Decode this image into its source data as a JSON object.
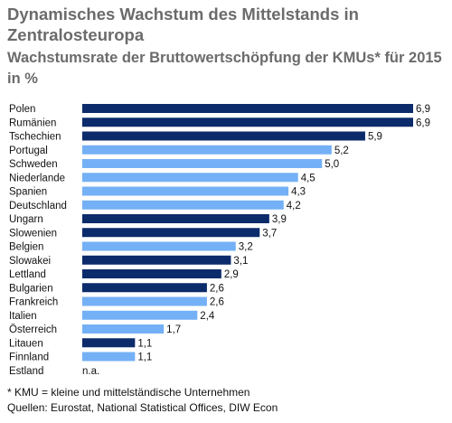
{
  "header": {
    "title": "Dynamisches Wachstum des Mittelstands in Zentralosteuropa",
    "subtitle": "Wachstumsrate der Bruttowertschöpfung der KMUs* für 2015",
    "unit": "in %"
  },
  "footer": {
    "note": "* KMU = kleine und mittelständische Unternehmen",
    "source": "Quellen: Eurostat, National Statistical Offices, DIW Econ"
  },
  "colors": {
    "dark": "#0c2b6b",
    "light": "#74b0f5",
    "text": "#111111",
    "title": "#6b6b6b"
  },
  "chart_data": {
    "type": "bar",
    "orientation": "horizontal",
    "title": "Dynamisches Wachstum des Mittelstands in Zentralosteuropa",
    "subtitle": "Wachstumsrate der Bruttowertschöpfung der KMUs* für 2015",
    "unit": "in %",
    "xlim": [
      0,
      6.9
    ],
    "grid": false,
    "categories": [
      "Polen",
      "Rumänien",
      "Tschechien",
      "Portugal",
      "Schweden",
      "Niederlande",
      "Spanien",
      "Deutschland",
      "Ungarn",
      "Slowenien",
      "Belgien",
      "Slowakei",
      "Lettland",
      "Bulgarien",
      "Frankreich",
      "Italien",
      "Österreich",
      "Litauen",
      "Finnland",
      "Estland"
    ],
    "values": [
      6.9,
      6.9,
      5.9,
      5.2,
      5.0,
      4.5,
      4.3,
      4.2,
      3.9,
      3.7,
      3.2,
      3.1,
      2.9,
      2.6,
      2.6,
      2.4,
      1.7,
      1.1,
      1.1,
      null
    ],
    "value_labels": [
      "6,9",
      "6,9",
      "5,9",
      "5,2",
      "5,0",
      "4,5",
      "4,3",
      "4,2",
      "3,9",
      "3,7",
      "3,2",
      "3,1",
      "2,9",
      "2,6",
      "2,6",
      "2,4",
      "1,7",
      "1,1",
      "1,1",
      "n.a."
    ],
    "bar_colors": [
      "dark",
      "dark",
      "dark",
      "light",
      "light",
      "light",
      "light",
      "light",
      "dark",
      "dark",
      "light",
      "dark",
      "dark",
      "dark",
      "light",
      "light",
      "light",
      "dark",
      "light",
      "none"
    ]
  }
}
